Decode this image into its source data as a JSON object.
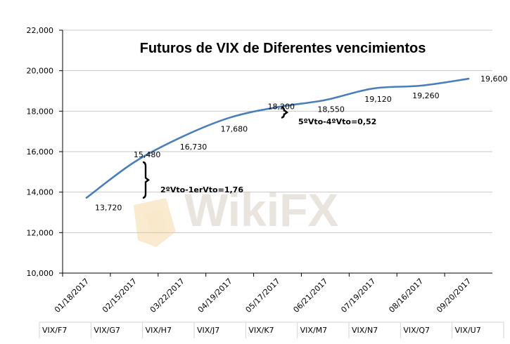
{
  "watermark": "WikiFX",
  "chart_data": {
    "type": "line",
    "title": "Futuros de VIX de Diferentes vencimientos",
    "xlabel": "",
    "ylabel": "",
    "ylim": [
      10000,
      22000
    ],
    "yticks": [
      "10,000",
      "12,000",
      "14,000",
      "16,000",
      "18,000",
      "20,000",
      "22,000"
    ],
    "grid": true,
    "legend": "none",
    "categories": [
      "01/18/2017",
      "02/15/2017",
      "03/22/2017",
      "04/19/2017",
      "05/17/2017",
      "06/21/2017",
      "07/19/2017",
      "08/16/2017",
      "09/20/2017"
    ],
    "codes": [
      "VIX/F7",
      "VIX/G7",
      "VIX/H7",
      "VIX/J7",
      "VIX/K7",
      "VIX/M7",
      "VIX/N7",
      "VIX/Q7",
      "VIX/U7"
    ],
    "series": [
      {
        "values": [
          13720,
          15480,
          16730,
          17680,
          18200,
          18550,
          19120,
          19260,
          19600
        ],
        "labels": [
          "13,720",
          "15,480",
          "16,730",
          "17,680",
          "18,200",
          "18,550",
          "19,120",
          "19,260",
          "19,600"
        ]
      }
    ],
    "annotations": [
      {
        "text": "2ºVto-1erVto=1,76",
        "from": 13720,
        "to": 15480
      },
      {
        "text": "5ºVto-4ºVto=0,52",
        "from": 17680,
        "to": 18200
      }
    ],
    "colors": {
      "line": "#4a7ebb",
      "grid": "#c8c8c8",
      "watermark": "#e9e4de",
      "watermark_logo": "#f5d9a8"
    }
  }
}
